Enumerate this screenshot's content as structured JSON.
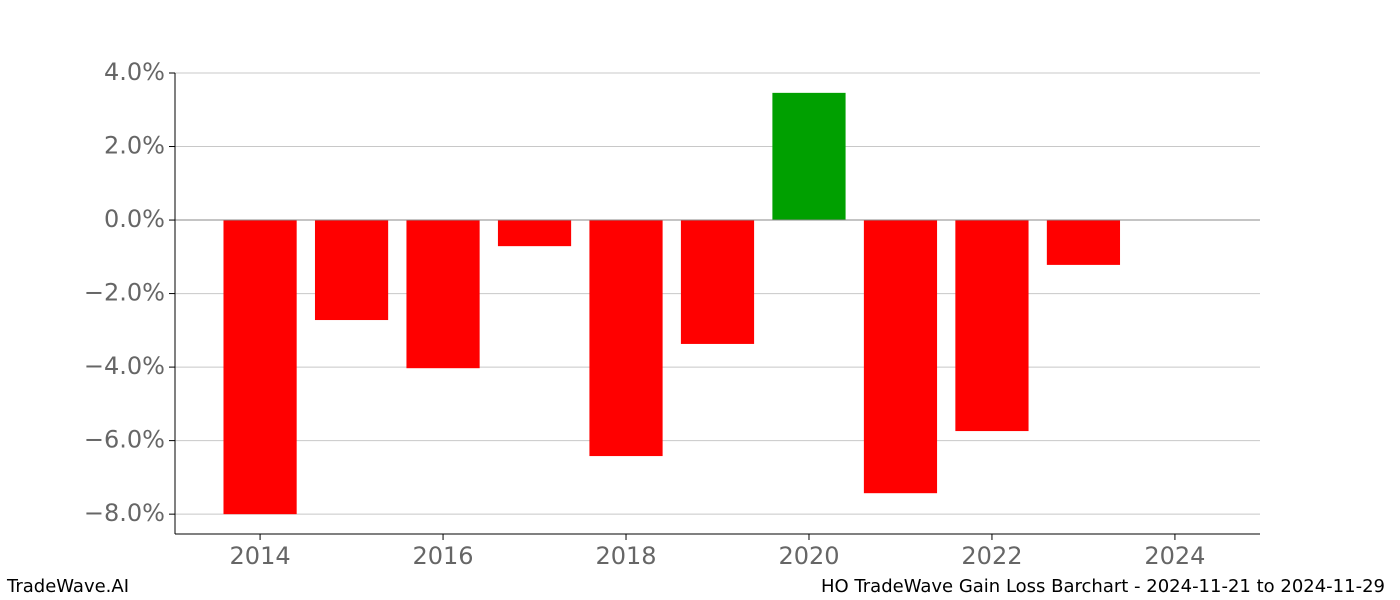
{
  "chart_data": {
    "type": "bar",
    "x": [
      2014,
      2015,
      2016,
      2017,
      2018,
      2019,
      2020,
      2021,
      2022,
      2023
    ],
    "values": [
      -8.0,
      -2.72,
      -4.03,
      -0.71,
      -6.42,
      -3.37,
      3.46,
      -7.43,
      -5.74,
      -1.22
    ],
    "positive_color": "#00a000",
    "negative_color": "#ff0000",
    "xlim": [
      2013.07,
      2024.93
    ],
    "xticks": [
      2014,
      2016,
      2018,
      2020,
      2022,
      2024
    ],
    "ylim": [
      -8.54,
      4.0
    ],
    "yticks": [
      {
        "value": 4,
        "label": "4.0%"
      },
      {
        "value": 2,
        "label": "2.0%"
      },
      {
        "value": 0,
        "label": "0.0%"
      },
      {
        "value": -2,
        "label": "−2.0%"
      },
      {
        "value": -4,
        "label": "−4.0%"
      },
      {
        "value": -6,
        "label": "−6.0%"
      },
      {
        "value": -8,
        "label": "−8.0%"
      }
    ],
    "grid": true
  },
  "footer": {
    "left": "TradeWave.AI",
    "right": "HO TradeWave Gain Loss Barchart - 2024-11-21 to 2024-11-29"
  }
}
